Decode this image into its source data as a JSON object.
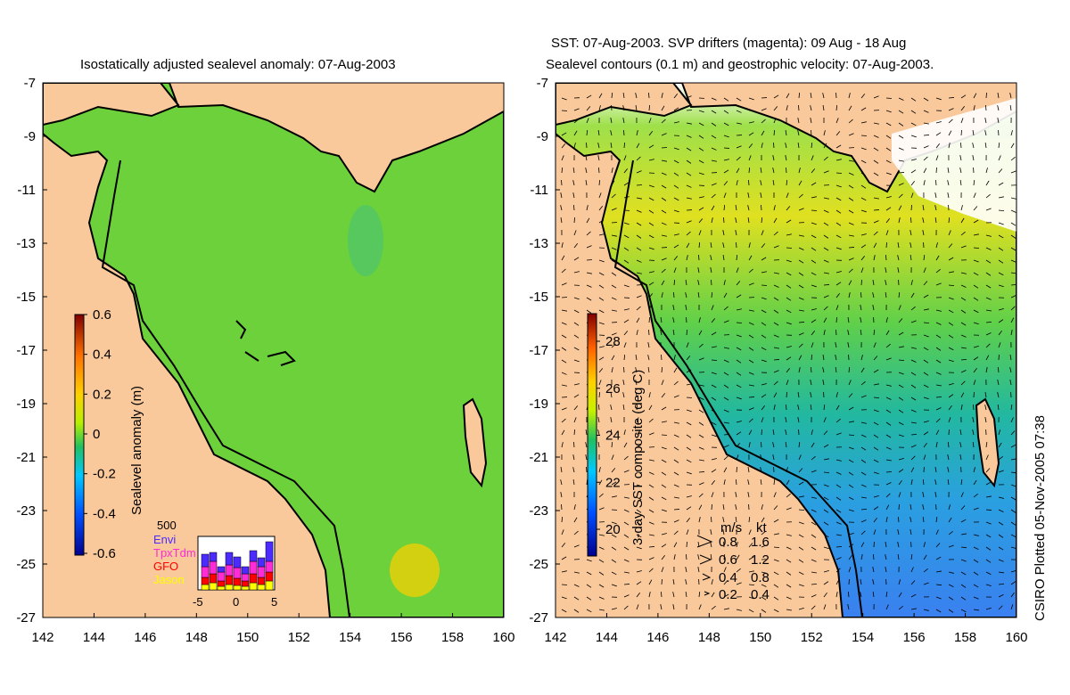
{
  "left_panel": {
    "title": "Isostatically adjusted sealevel anomaly: 07-Aug-2003",
    "colorbar_label": "Sealevel anomaly (m)",
    "colorbar_ticks": [
      "0.6",
      "0.4",
      "0.2",
      "0",
      "-0.2",
      "-0.4",
      "-0.6"
    ],
    "histogram": {
      "ymax_label": "500",
      "legend": [
        {
          "name": "Envi",
          "color": "#4b2bff"
        },
        {
          "name": "TpxTdm",
          "color": "#ff2bd6"
        },
        {
          "name": "GFO",
          "color": "#ff0000"
        },
        {
          "name": "Jason",
          "color": "#ffff00"
        }
      ],
      "xticks": [
        "-5",
        "0",
        "5"
      ]
    }
  },
  "right_panel": {
    "title_line1": "SST: 07-Aug-2003. SVP drifters (magenta): 09 Aug - 18 Aug",
    "title_line2": "Sealevel contours (0.1 m) and geostrophic velocity: 07-Aug-2003.",
    "colorbar_label": "3-day SST composite (deg C)",
    "colorbar_ticks": [
      "28",
      "26",
      "24",
      "22",
      "20"
    ],
    "velocity_key": {
      "header_ms": "m/s",
      "header_kt": "kt",
      "rows": [
        {
          "ms": "0.8",
          "kt": "1.6"
        },
        {
          "ms": "0.6",
          "kt": "1.2"
        },
        {
          "ms": "0.4",
          "kt": "0.8"
        },
        {
          "ms": "0.2",
          "kt": "0.4"
        }
      ]
    }
  },
  "axes": {
    "lat_ticks": [
      "-7",
      "-9",
      "-11",
      "-13",
      "-15",
      "-17",
      "-19",
      "-21",
      "-23",
      "-25",
      "-27"
    ],
    "lon_ticks": [
      "142",
      "144",
      "146",
      "148",
      "150",
      "152",
      "154",
      "156",
      "158",
      "160"
    ]
  },
  "stamp": "CSIRO Plotted 05-Nov-2005 07:38",
  "colors": {
    "land": "#f9c89b",
    "ocean_green": "#6cd13a",
    "coast": "#000000"
  }
}
